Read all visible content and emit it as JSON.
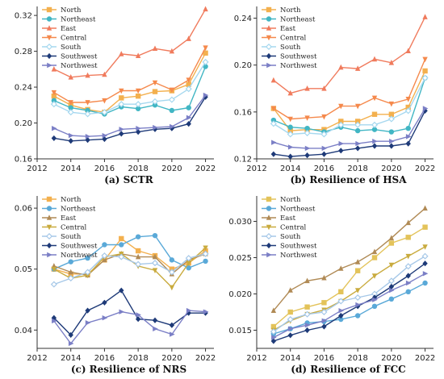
{
  "chart_data": [
    {
      "type": "line",
      "caption": "(a) SCTR",
      "x": [
        2013,
        2014,
        2015,
        2016,
        2017,
        2018,
        2019,
        2020,
        2021,
        2022
      ],
      "xlim": [
        2012,
        2022.5
      ],
      "xticks": [
        2012,
        2014,
        2016,
        2018,
        2020,
        2022
      ],
      "ylim": [
        0.16,
        0.33
      ],
      "yticks": [
        0.16,
        0.2,
        0.24,
        0.28,
        0.32
      ],
      "ydecimals": 2,
      "legend_position": "top-left",
      "series": [
        {
          "name": "North",
          "color": "#f3b04e",
          "marker": "square",
          "values": [
            0.23,
            0.22,
            0.215,
            0.212,
            0.228,
            0.23,
            0.235,
            0.236,
            0.243,
            0.278
          ]
        },
        {
          "name": "Northeast",
          "color": "#41b6c4",
          "marker": "circle",
          "values": [
            0.225,
            0.217,
            0.214,
            0.21,
            0.218,
            0.216,
            0.22,
            0.214,
            0.217,
            0.263
          ]
        },
        {
          "name": "East",
          "color": "#f07b5d",
          "marker": "triangle-up",
          "values": [
            0.26,
            0.251,
            0.253,
            0.254,
            0.277,
            0.275,
            0.283,
            0.28,
            0.294,
            0.327
          ]
        },
        {
          "name": "Central",
          "color": "#f5894c",
          "marker": "triangle-down",
          "values": [
            0.234,
            0.223,
            0.223,
            0.225,
            0.236,
            0.236,
            0.245,
            0.237,
            0.248,
            0.284
          ]
        },
        {
          "name": "South",
          "color": "#a6d8ef",
          "marker": "diamond",
          "values": [
            0.221,
            0.212,
            0.21,
            0.212,
            0.221,
            0.221,
            0.224,
            0.226,
            0.238,
            0.268
          ]
        },
        {
          "name": "Southwest",
          "color": "#1e3a78",
          "marker": "diamond-fill",
          "values": [
            0.183,
            0.18,
            0.181,
            0.182,
            0.188,
            0.19,
            0.193,
            0.194,
            0.199,
            0.229
          ]
        },
        {
          "name": "Northwest",
          "color": "#7b7fc6",
          "marker": "triangle-right",
          "values": [
            0.194,
            0.186,
            0.185,
            0.186,
            0.193,
            0.194,
            0.195,
            0.196,
            0.206,
            0.231
          ]
        }
      ]
    },
    {
      "type": "line",
      "caption": "(b) Resilience of HSA",
      "x": [
        2013,
        2014,
        2015,
        2016,
        2017,
        2018,
        2019,
        2020,
        2021,
        2022
      ],
      "xlim": [
        2012,
        2022.5
      ],
      "xticks": [
        2012,
        2014,
        2016,
        2018,
        2020,
        2022
      ],
      "ylim": [
        0.12,
        0.25
      ],
      "yticks": [
        0.12,
        0.16,
        0.2,
        0.24
      ],
      "ydecimals": 2,
      "legend_position": "top-left",
      "series": [
        {
          "name": "North",
          "color": "#f3b04e",
          "marker": "square",
          "values": [
            0.163,
            0.144,
            0.145,
            0.145,
            0.152,
            0.152,
            0.158,
            0.158,
            0.164,
            0.195
          ]
        },
        {
          "name": "Northeast",
          "color": "#41b6c4",
          "marker": "circle",
          "values": [
            0.153,
            0.147,
            0.146,
            0.143,
            0.147,
            0.144,
            0.145,
            0.143,
            0.146,
            0.189
          ]
        },
        {
          "name": "East",
          "color": "#f07b5d",
          "marker": "triangle-up",
          "values": [
            0.187,
            0.176,
            0.18,
            0.18,
            0.198,
            0.197,
            0.205,
            0.202,
            0.212,
            0.241
          ]
        },
        {
          "name": "Central",
          "color": "#f5894c",
          "marker": "triangle-down",
          "values": [
            0.163,
            0.154,
            0.155,
            0.156,
            0.165,
            0.165,
            0.172,
            0.167,
            0.171,
            0.205
          ]
        },
        {
          "name": "South",
          "color": "#a6d8ef",
          "marker": "diamond",
          "values": [
            0.15,
            0.141,
            0.142,
            0.141,
            0.149,
            0.149,
            0.149,
            0.154,
            0.161,
            0.189
          ]
        },
        {
          "name": "Southwest",
          "color": "#1e3a78",
          "marker": "diamond-fill",
          "values": [
            0.124,
            0.122,
            0.123,
            0.124,
            0.127,
            0.129,
            0.131,
            0.131,
            0.133,
            0.161
          ]
        },
        {
          "name": "Northwest",
          "color": "#7b7fc6",
          "marker": "triangle-right",
          "values": [
            0.134,
            0.13,
            0.129,
            0.129,
            0.133,
            0.133,
            0.135,
            0.135,
            0.139,
            0.163
          ]
        }
      ]
    },
    {
      "type": "line",
      "caption": "(c) Resilience of NRS",
      "x": [
        2013,
        2014,
        2015,
        2016,
        2017,
        2018,
        2019,
        2020,
        2021,
        2022
      ],
      "xlim": [
        2012,
        2022.5
      ],
      "xticks": [
        2012,
        2014,
        2016,
        2018,
        2020,
        2022
      ],
      "ylim": [
        0.037,
        0.062
      ],
      "yticks": [
        0.04,
        0.05,
        0.06
      ],
      "ydecimals": 2,
      "legend_position": "top-left",
      "series": [
        {
          "name": "North",
          "color": "#f3b04e",
          "marker": "square",
          "values": [
            0.05,
            0.0492,
            0.0492,
            0.0515,
            0.055,
            0.053,
            0.0522,
            0.05,
            0.051,
            0.053
          ]
        },
        {
          "name": "Northeast",
          "color": "#5aa9d8",
          "marker": "circle",
          "values": [
            0.05,
            0.0512,
            0.0518,
            0.054,
            0.054,
            0.0553,
            0.0555,
            0.0515,
            0.0502,
            0.0513
          ]
        },
        {
          "name": "East",
          "color": "#b08a55",
          "marker": "triangle-up",
          "values": [
            0.0505,
            0.0495,
            0.049,
            0.0515,
            0.0525,
            0.052,
            0.052,
            0.0492,
            0.0515,
            0.0525
          ]
        },
        {
          "name": "Central",
          "color": "#c9ab3e",
          "marker": "triangle-down",
          "values": [
            0.05,
            0.0485,
            0.049,
            0.052,
            0.0525,
            0.0505,
            0.0498,
            0.047,
            0.051,
            0.0535
          ]
        },
        {
          "name": "South",
          "color": "#a6c8e8",
          "marker": "diamond",
          "values": [
            0.0475,
            0.0485,
            0.0495,
            0.0522,
            0.052,
            0.0508,
            0.051,
            0.0495,
            0.0518,
            0.0525
          ]
        },
        {
          "name": "Southwest",
          "color": "#1e3a78",
          "marker": "diamond-fill",
          "values": [
            0.042,
            0.0392,
            0.0432,
            0.0445,
            0.0465,
            0.0418,
            0.0416,
            0.0408,
            0.0428,
            0.0428
          ]
        },
        {
          "name": "Northwest",
          "color": "#7b7fc6",
          "marker": "triangle-right",
          "values": [
            0.0415,
            0.0378,
            0.0412,
            0.042,
            0.043,
            0.0425,
            0.0402,
            0.0393,
            0.0432,
            0.043
          ]
        }
      ]
    },
    {
      "type": "line",
      "caption": "(d) Resilience of FCC",
      "x": [
        2013,
        2014,
        2015,
        2016,
        2017,
        2018,
        2019,
        2020,
        2021,
        2022
      ],
      "xlim": [
        2012,
        2022.5
      ],
      "xticks": [
        2012,
        2014,
        2016,
        2018,
        2020,
        2022
      ],
      "ylim": [
        0.0125,
        0.0335
      ],
      "yticks": [
        0.015,
        0.02,
        0.025,
        0.03
      ],
      "ydecimals": 3,
      "legend_position": "top-left",
      "series": [
        {
          "name": "North",
          "color": "#e3c35a",
          "marker": "square",
          "values": [
            0.0155,
            0.0175,
            0.0182,
            0.0188,
            0.0203,
            0.0232,
            0.025,
            0.027,
            0.0278,
            0.0292
          ]
        },
        {
          "name": "Northeast",
          "color": "#5aa9d8",
          "marker": "circle",
          "values": [
            0.0145,
            0.0152,
            0.016,
            0.0162,
            0.0165,
            0.017,
            0.0183,
            0.0193,
            0.0203,
            0.0215
          ]
        },
        {
          "name": "East",
          "color": "#b08a55",
          "marker": "triangle-up",
          "values": [
            0.0177,
            0.0205,
            0.0218,
            0.0222,
            0.0235,
            0.0244,
            0.0258,
            0.0277,
            0.0298,
            0.0318
          ]
        },
        {
          "name": "Central",
          "color": "#c9ab3e",
          "marker": "triangle-down",
          "values": [
            0.015,
            0.0163,
            0.0172,
            0.0178,
            0.019,
            0.0205,
            0.0225,
            0.024,
            0.0252,
            0.0265
          ]
        },
        {
          "name": "South",
          "color": "#a6c8e8",
          "marker": "diamond",
          "values": [
            0.0148,
            0.0165,
            0.0172,
            0.0175,
            0.019,
            0.0195,
            0.02,
            0.0218,
            0.0238,
            0.0252
          ]
        },
        {
          "name": "Southwest",
          "color": "#1e3a78",
          "marker": "diamond-fill",
          "values": [
            0.0135,
            0.0143,
            0.015,
            0.0155,
            0.017,
            0.0183,
            0.0195,
            0.021,
            0.0225,
            0.0242
          ]
        },
        {
          "name": "Northwest",
          "color": "#7b7fc6",
          "marker": "triangle-right",
          "values": [
            0.014,
            0.0152,
            0.0157,
            0.0163,
            0.0177,
            0.0185,
            0.0192,
            0.0205,
            0.0215,
            0.0228
          ]
        }
      ]
    }
  ]
}
